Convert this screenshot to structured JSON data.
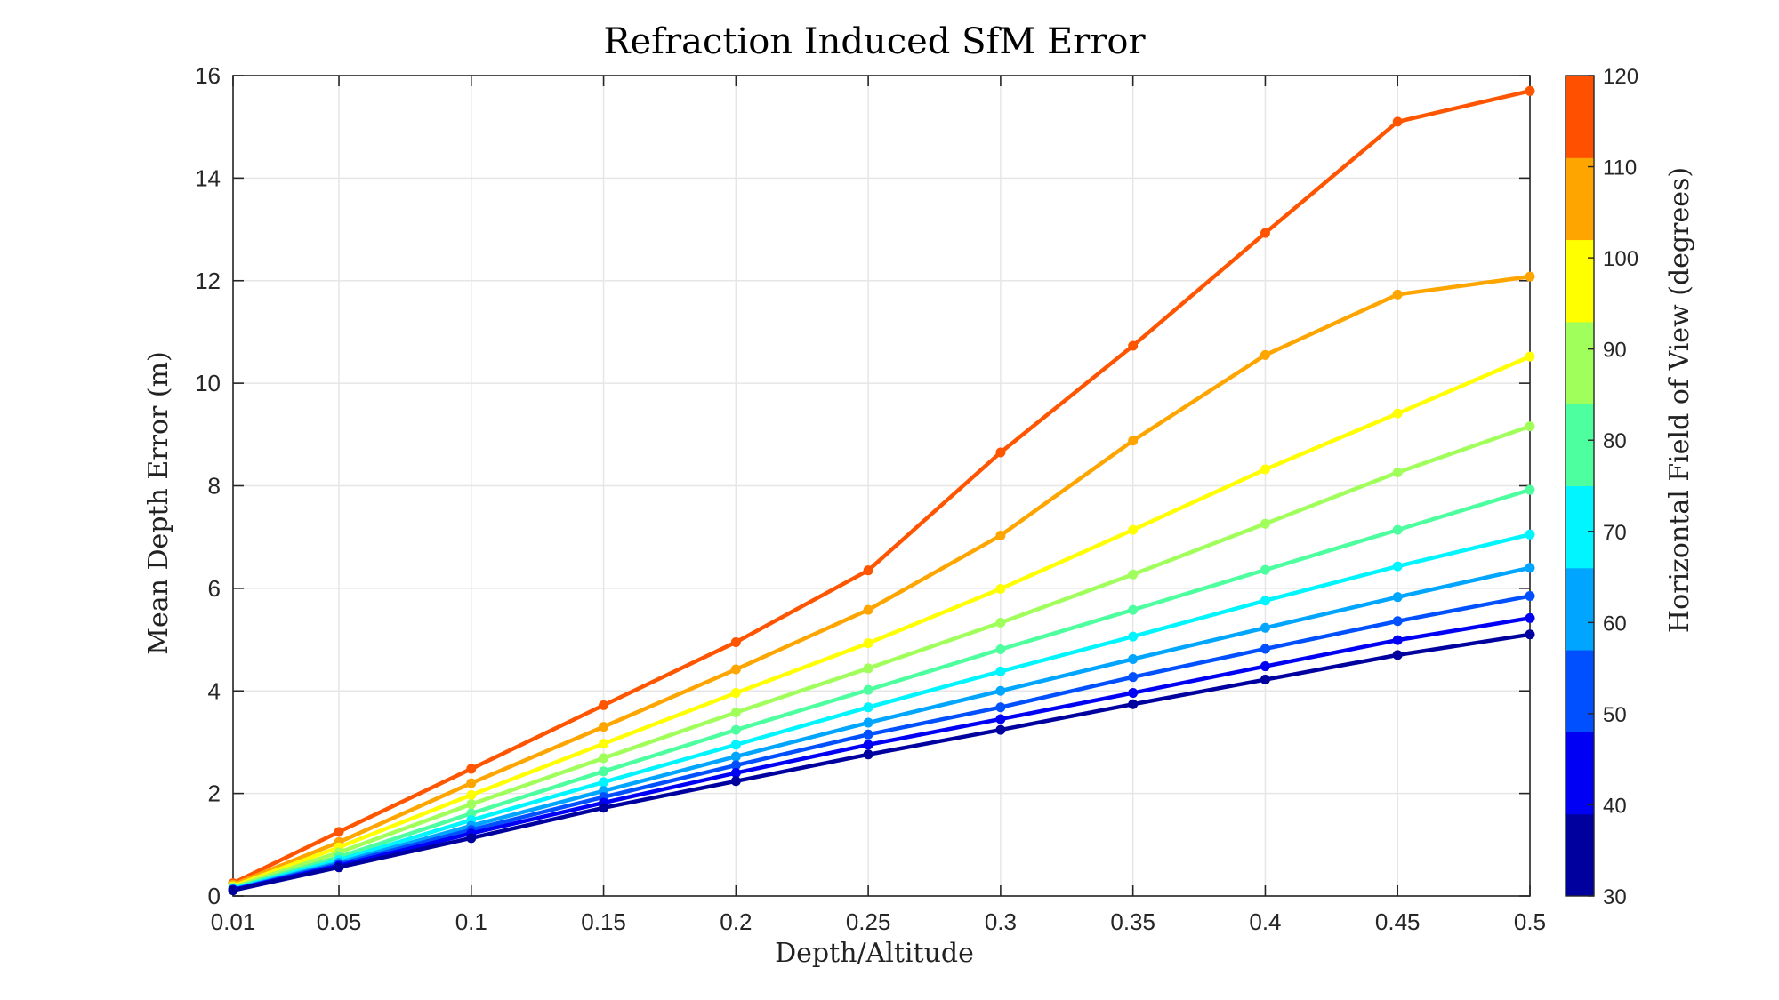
{
  "chart_data": {
    "type": "line",
    "title": "Refraction Induced SfM Error",
    "xlabel": "Depth/Altitude",
    "ylabel": "Mean Depth Error (m)",
    "x": [
      0.01,
      0.05,
      0.1,
      0.15,
      0.2,
      0.25,
      0.3,
      0.35,
      0.4,
      0.45,
      0.5
    ],
    "x_tick_labels": [
      "0.01",
      "0.05",
      "0.1",
      "0.15",
      "0.2",
      "0.25",
      "0.3",
      "0.35",
      "0.4",
      "0.45",
      "0.5"
    ],
    "y_ticks": [
      0,
      2,
      4,
      6,
      8,
      10,
      12,
      14,
      16
    ],
    "y_tick_labels": [
      "0",
      "2",
      "4",
      "6",
      "8",
      "10",
      "12",
      "14",
      "16"
    ],
    "ylim": [
      0,
      16
    ],
    "grid": true,
    "colorbar": {
      "label": "Horizontal Field of View (degrees)",
      "range": [
        30,
        120
      ],
      "ticks": [
        30,
        40,
        50,
        60,
        70,
        80,
        90,
        100,
        110,
        120
      ],
      "tick_labels": [
        "30",
        "40",
        "50",
        "60",
        "70",
        "80",
        "90",
        "100",
        "110",
        "120"
      ],
      "band_colors": [
        "#00009f",
        "#0000f5",
        "#0050ff",
        "#00a5ff",
        "#00f5ff",
        "#4dff9f",
        "#a0ff5a",
        "#ffff00",
        "#ffa500",
        "#ff5000"
      ]
    },
    "series": [
      {
        "fov": 120,
        "color": "#ff5500",
        "values": [
          0.25,
          1.25,
          2.48,
          3.72,
          4.95,
          6.35,
          8.65,
          10.73,
          12.93,
          15.1,
          15.7
        ]
      },
      {
        "fov": 110,
        "color": "#ffa500",
        "values": [
          0.22,
          1.05,
          2.2,
          3.3,
          4.42,
          5.58,
          7.03,
          8.88,
          10.55,
          11.73,
          12.08
        ]
      },
      {
        "fov": 100,
        "color": "#ffff00",
        "values": [
          0.19,
          0.95,
          1.97,
          2.97,
          3.96,
          4.93,
          5.99,
          7.14,
          8.32,
          9.41,
          10.52
        ]
      },
      {
        "fov": 90,
        "color": "#a0ff5a",
        "values": [
          0.17,
          0.85,
          1.79,
          2.69,
          3.58,
          4.44,
          5.33,
          6.27,
          7.26,
          8.26,
          9.16
        ]
      },
      {
        "fov": 80,
        "color": "#4dff9f",
        "values": [
          0.15,
          0.76,
          1.61,
          2.43,
          3.24,
          4.02,
          4.81,
          5.58,
          6.36,
          7.14,
          7.92
        ]
      },
      {
        "fov": 70,
        "color": "#00f5ff",
        "values": [
          0.14,
          0.7,
          1.48,
          2.22,
          2.95,
          3.68,
          4.38,
          5.06,
          5.76,
          6.43,
          7.05
        ]
      },
      {
        "fov": 60,
        "color": "#00a5ff",
        "values": [
          0.13,
          0.65,
          1.37,
          2.05,
          2.72,
          3.38,
          4.0,
          4.62,
          5.23,
          5.83,
          6.4
        ]
      },
      {
        "fov": 50,
        "color": "#0050ff",
        "values": [
          0.12,
          0.62,
          1.29,
          1.93,
          2.55,
          3.15,
          3.68,
          4.27,
          4.82,
          5.36,
          5.85
        ]
      },
      {
        "fov": 40,
        "color": "#0000f5",
        "values": [
          0.12,
          0.59,
          1.22,
          1.82,
          2.4,
          2.95,
          3.45,
          3.96,
          4.48,
          4.99,
          5.42
        ]
      },
      {
        "fov": 30,
        "color": "#00009f",
        "values": [
          0.11,
          0.56,
          1.13,
          1.72,
          2.24,
          2.76,
          3.24,
          3.74,
          4.22,
          4.7,
          5.1
        ]
      }
    ]
  }
}
